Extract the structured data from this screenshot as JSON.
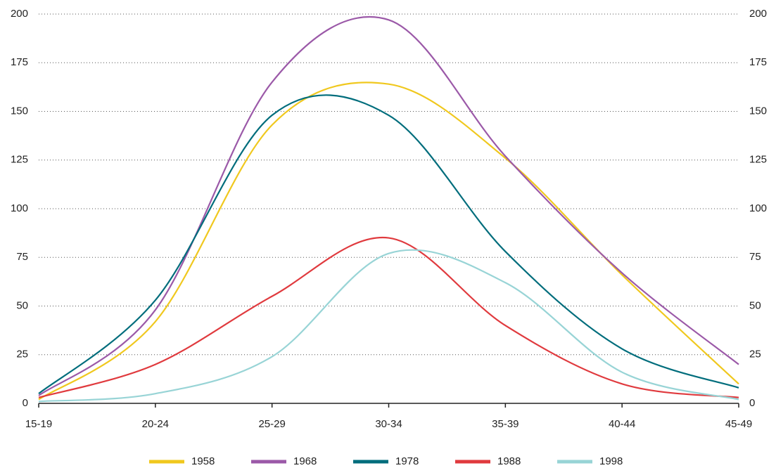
{
  "chart_data": {
    "type": "line",
    "categories": [
      "15-19",
      "20-24",
      "25-29",
      "30-34",
      "35-39",
      "40-44",
      "45-49"
    ],
    "series": [
      {
        "name": "1958",
        "color": "#f0c81e",
        "values": [
          2,
          42,
          143,
          164,
          126,
          66,
          10
        ]
      },
      {
        "name": "1968",
        "color": "#9b59a8",
        "values": [
          4,
          48,
          165,
          197,
          127,
          67,
          20
        ]
      },
      {
        "name": "1978",
        "color": "#006d7c",
        "values": [
          5,
          53,
          148,
          148,
          78,
          28,
          8
        ]
      },
      {
        "name": "1988",
        "color": "#e03a3e",
        "values": [
          3,
          20,
          55,
          85,
          40,
          10,
          3
        ]
      },
      {
        "name": "1998",
        "color": "#98d4d6",
        "values": [
          1,
          5,
          24,
          77,
          62,
          16,
          2
        ]
      }
    ],
    "ylim": [
      0,
      200
    ],
    "yticks": [
      0,
      25,
      50,
      75,
      100,
      125,
      150,
      175,
      200
    ],
    "y2lim": [
      0,
      200
    ],
    "y2ticks": [
      0,
      25,
      50,
      75,
      100,
      125,
      150,
      175,
      200
    ],
    "grid": true,
    "legend": "bottom"
  }
}
